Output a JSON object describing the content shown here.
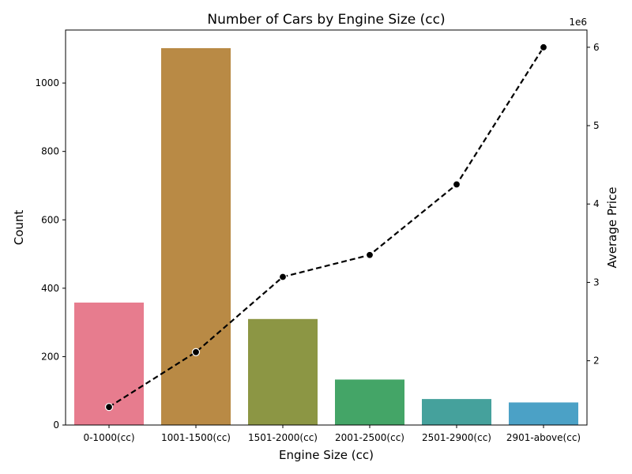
{
  "chart_data": {
    "type": "bar",
    "title": "Number of Cars by Engine Size (cc)",
    "xlabel": "Engine Size (cc)",
    "ylabel": "Count",
    "y2label": "Average Price",
    "y2_offset_label": "1e6",
    "categories": [
      "0-1000(cc)",
      "1001-1500(cc)",
      "1501-2000(cc)",
      "2001-2500(cc)",
      "2501-2900(cc)",
      "2901-above(cc)"
    ],
    "ylim": [
      0,
      1155
    ],
    "yticks": [
      0,
      200,
      400,
      600,
      800,
      1000
    ],
    "y2lim": [
      1.18,
      6.22
    ],
    "y2ticks": [
      2,
      3,
      4,
      5,
      6
    ],
    "grid": false,
    "series": [
      {
        "kind": "bar",
        "values": [
          358,
          1102,
          310,
          133,
          76,
          66
        ],
        "colors": [
          "#e77c8e",
          "#b98a45",
          "#8c9644",
          "#44a567",
          "#45a19c",
          "#4ba1c6"
        ]
      },
      {
        "kind": "line",
        "axis": "right",
        "values": [
          1.41,
          2.11,
          3.07,
          3.35,
          4.25,
          6.0
        ],
        "color": "#000000",
        "style": "dashed",
        "marker": "circle"
      }
    ]
  }
}
